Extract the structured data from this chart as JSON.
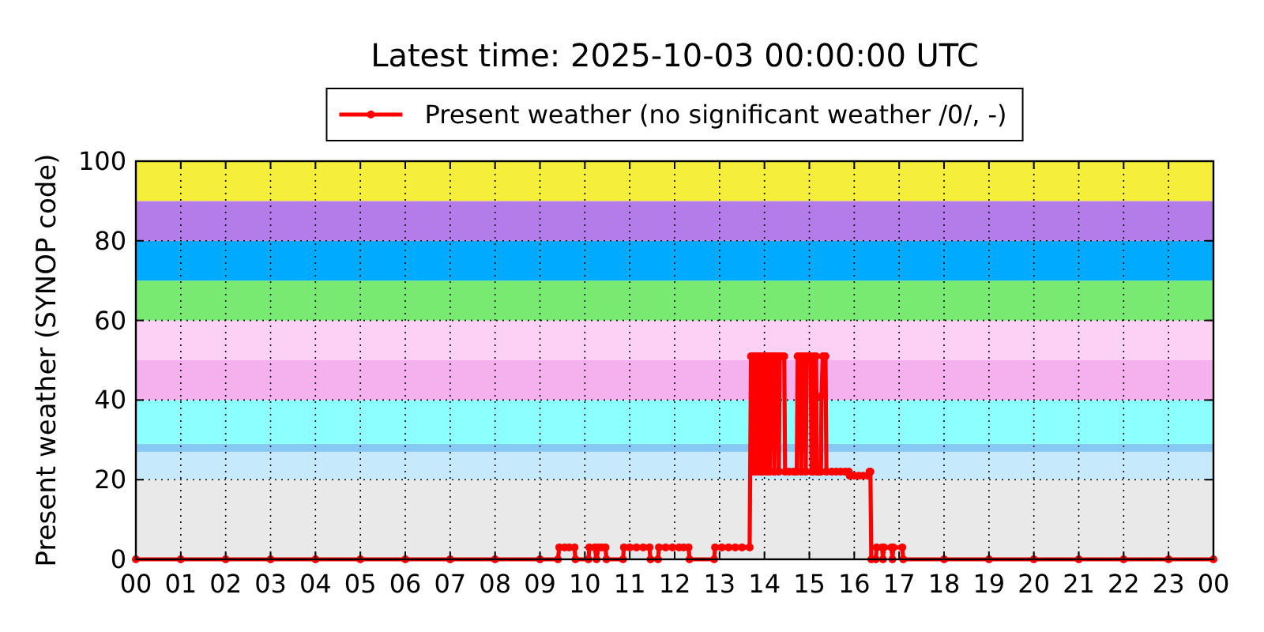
{
  "chart_data": {
    "type": "line",
    "title": "Latest time: 2025-10-03 00:00:00 UTC",
    "ylabel": "Present weather (SYNOP code)",
    "x": [
      0,
      1,
      2,
      3,
      4,
      5,
      6,
      7,
      8,
      9,
      9.4,
      9.43,
      9.55,
      9.65,
      9.77,
      9.79,
      10.08,
      10.1,
      10.22,
      10.26,
      10.3,
      10.38,
      10.46,
      10.48,
      10.85,
      10.87,
      11,
      11.15,
      11.3,
      11.44,
      11.46,
      11.63,
      11.65,
      11.8,
      11.95,
      12.1,
      12.2,
      12.31,
      12.33,
      12.88,
      12.9,
      13.05,
      13.2,
      13.35,
      13.5,
      13.67,
      13.7,
      13.74,
      13.76,
      13.78,
      13.82,
      13.84,
      13.86,
      13.9,
      13.92,
      13.95,
      13.97,
      14.02,
      14.04,
      14.06,
      14.1,
      14.12,
      14.14,
      14.2,
      14.22,
      14.24,
      14.3,
      14.32,
      14.34,
      14.4,
      14.44,
      14.46,
      14.55,
      14.65,
      14.72,
      14.74,
      14.8,
      14.82,
      14.84,
      14.9,
      14.92,
      14.94,
      15,
      15.03,
      15.05,
      15.08,
      15.1,
      15.15,
      15.17,
      15.22,
      15.26,
      15.27,
      15.3,
      15.36,
      15.38,
      15.5,
      15.6,
      15.7,
      15.8,
      15.88,
      15.9,
      16,
      16.1,
      16.2,
      16.3,
      16.34,
      16.36,
      16.38,
      16.48,
      16.5,
      16.62,
      16.64,
      16.66,
      16.83,
      16.85,
      16.87,
      17.07,
      17.09,
      18,
      19,
      20,
      21,
      22,
      23,
      24
    ],
    "series": [
      {
        "name": "Present weather (no significant weather /0/, -)",
        "color": "#ff0000",
        "values": [
          0,
          0,
          0,
          0,
          0,
          0,
          0,
          0,
          0,
          0,
          0,
          3,
          3,
          3,
          3,
          0,
          0,
          3,
          3,
          0,
          3,
          3,
          3,
          0,
          0,
          3,
          3,
          3,
          3,
          3,
          0,
          0,
          3,
          3,
          3,
          3,
          3,
          3,
          0,
          0,
          3,
          3,
          3,
          3,
          3,
          3,
          51,
          51,
          22,
          51,
          51,
          22,
          51,
          51,
          22,
          22,
          51,
          51,
          22,
          51,
          51,
          22,
          51,
          51,
          22,
          51,
          51,
          22,
          51,
          51,
          51,
          22,
          22,
          22,
          22,
          51,
          51,
          22,
          51,
          51,
          22,
          51,
          51,
          51,
          22,
          22,
          51,
          51,
          22,
          22,
          22,
          41,
          51,
          51,
          22,
          22,
          22,
          22,
          22,
          22,
          21,
          21,
          21,
          21,
          21,
          22,
          22,
          0,
          0,
          3,
          3,
          0,
          3,
          3,
          0,
          3,
          3,
          0,
          0,
          0,
          0,
          0,
          0,
          0,
          0
        ]
      }
    ],
    "xlim": [
      0,
      24
    ],
    "xticks": [
      {
        "value": 0,
        "label": "00"
      },
      {
        "value": 1,
        "label": "01"
      },
      {
        "value": 2,
        "label": "02"
      },
      {
        "value": 3,
        "label": "03"
      },
      {
        "value": 4,
        "label": "04"
      },
      {
        "value": 5,
        "label": "05"
      },
      {
        "value": 6,
        "label": "06"
      },
      {
        "value": 7,
        "label": "07"
      },
      {
        "value": 8,
        "label": "08"
      },
      {
        "value": 9,
        "label": "09"
      },
      {
        "value": 10,
        "label": "10"
      },
      {
        "value": 11,
        "label": "11"
      },
      {
        "value": 12,
        "label": "12"
      },
      {
        "value": 13,
        "label": "13"
      },
      {
        "value": 14,
        "label": "14"
      },
      {
        "value": 15,
        "label": "15"
      },
      {
        "value": 16,
        "label": "16"
      },
      {
        "value": 17,
        "label": "17"
      },
      {
        "value": 18,
        "label": "18"
      },
      {
        "value": 19,
        "label": "19"
      },
      {
        "value": 20,
        "label": "20"
      },
      {
        "value": 21,
        "label": "21"
      },
      {
        "value": 22,
        "label": "22"
      },
      {
        "value": 23,
        "label": "23"
      },
      {
        "value": 24,
        "label": "00"
      }
    ],
    "ylim": [
      0,
      100
    ],
    "yticks": [
      0,
      20,
      40,
      60,
      80,
      100
    ],
    "grid": true,
    "legend": "top",
    "marker": "circle",
    "line_style": "solid",
    "bands": [
      {
        "axis": "y",
        "from": 0,
        "to": 20,
        "color": "#e9e9e9"
      },
      {
        "axis": "y",
        "from": 20,
        "to": 27,
        "color": "#c6e9fc"
      },
      {
        "axis": "y",
        "from": 27,
        "to": 29,
        "color": "#88c8f4"
      },
      {
        "axis": "y",
        "from": 29,
        "to": 40,
        "color": "#8cffff"
      },
      {
        "axis": "y",
        "from": 40,
        "to": 50,
        "color": "#f5b1ed"
      },
      {
        "axis": "y",
        "from": 50,
        "to": 60,
        "color": "#fdd0f6"
      },
      {
        "axis": "y",
        "from": 60,
        "to": 70,
        "color": "#79ea71"
      },
      {
        "axis": "y",
        "from": 70,
        "to": 80,
        "color": "#00aaff"
      },
      {
        "axis": "y",
        "from": 80,
        "to": 90,
        "color": "#b37ce9"
      },
      {
        "axis": "y",
        "from": 90,
        "to": 100,
        "color": "#f5ef3b"
      }
    ]
  }
}
